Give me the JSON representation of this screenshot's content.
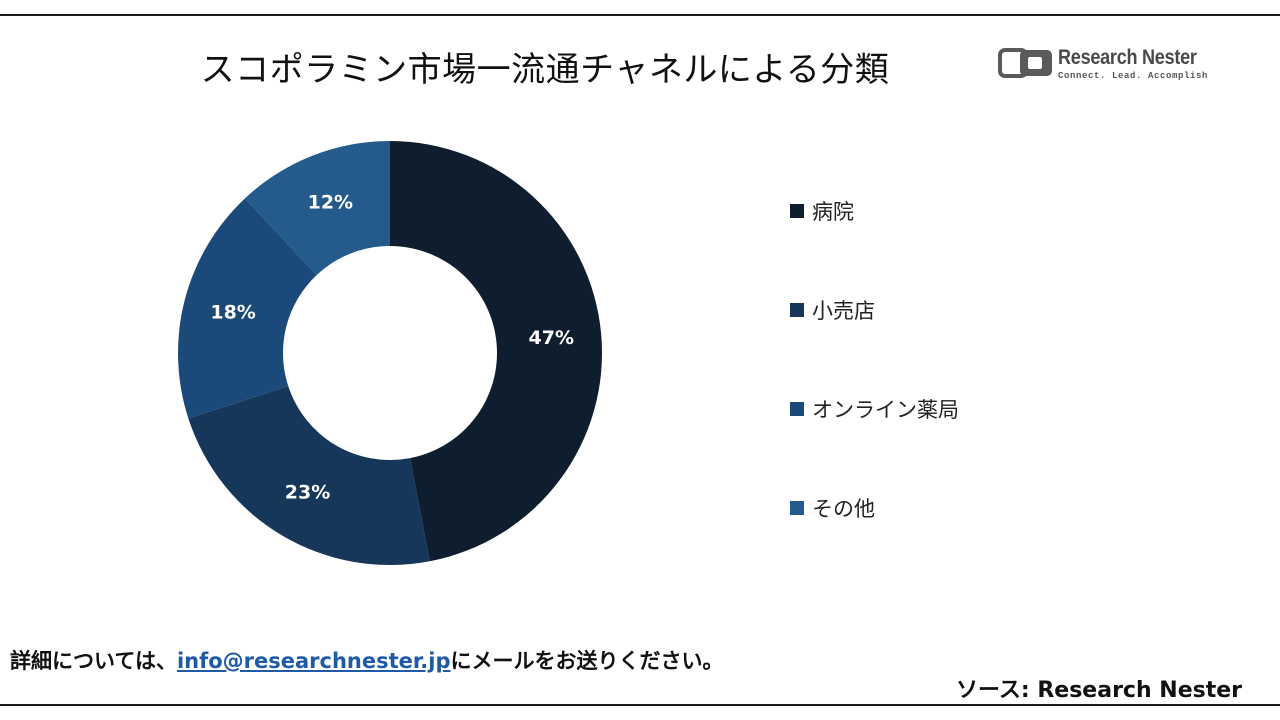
{
  "title": "スコポラミン市場一流通チャネルによる分類",
  "logo": {
    "name": "Research Nester",
    "tagline": "Connect. Lead. Accomplish"
  },
  "chart_data": {
    "type": "pie",
    "donut": true,
    "title": "スコポラミン市場一流通チャネルによる分類",
    "legend_position": "right",
    "series": [
      {
        "name": "病院",
        "value": 47,
        "label": "47%",
        "color": "#0e1e2e"
      },
      {
        "name": "小売店",
        "value": 23,
        "label": "23%",
        "color": "#16365a"
      },
      {
        "name": "オンライン薬局",
        "value": 18,
        "label": "18%",
        "color": "#1b4a7a"
      },
      {
        "name": "その他",
        "value": 12,
        "label": "12%",
        "color": "#245a8c"
      }
    ]
  },
  "footer": {
    "prefix": "詳細については、",
    "email": "info@researchnester.jp",
    "suffix": "にメールをお送りください。"
  },
  "source": "ソース: Research Nester"
}
